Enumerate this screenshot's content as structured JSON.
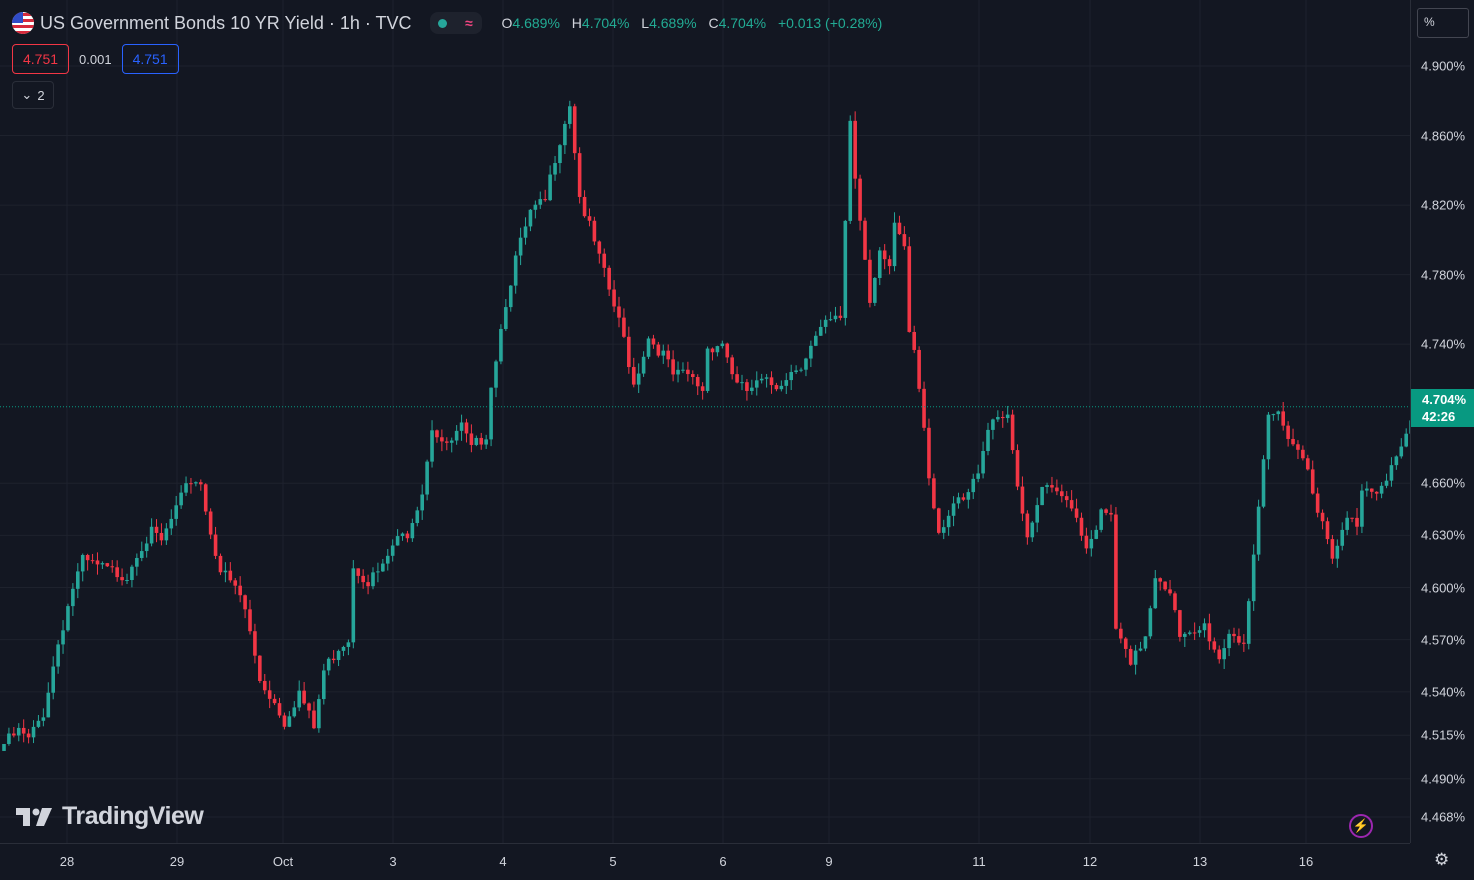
{
  "header": {
    "title": "US Government Bonds 10 YR Yield · 1h · TVC",
    "ohlc": {
      "o_label": "O",
      "o_value": "4.689%",
      "h_label": "H",
      "h_value": "4.704%",
      "l_label": "L",
      "l_value": "4.689%",
      "c_label": "C",
      "c_value": "4.704%",
      "change": "+0.013 (+0.28%)"
    },
    "sell_price": "4.751",
    "spread": "0.001",
    "buy_price": "4.751",
    "collapse_count": "2"
  },
  "price_axis": {
    "unit": "%",
    "last_price": "4.704%",
    "countdown": "42:26"
  },
  "branding": {
    "logo_text": "TradingView"
  },
  "colors": {
    "up": "#26a69a",
    "down": "#f23645",
    "background": "#131722",
    "grid": "#1e222d"
  },
  "icons": {
    "bolt": "lightning-bolt-icon",
    "settings": "gear-icon",
    "chevron": "chevron-down-icon"
  },
  "chart_data": {
    "type": "candlestick",
    "title": "US Government Bonds 10 YR Yield · 1h · TVC",
    "y_unit": "%",
    "y_ticks": [
      "4.900%",
      "4.860%",
      "4.820%",
      "4.780%",
      "4.740%",
      "4.660%",
      "4.630%",
      "4.600%",
      "4.570%",
      "4.540%",
      "4.515%",
      "4.490%",
      "4.468%"
    ],
    "x_ticks": [
      "28",
      "29",
      "Oct",
      "3",
      "4",
      "5",
      "6",
      "9",
      "11",
      "12",
      "13",
      "16"
    ],
    "grid": true,
    "last_price": 4.704,
    "series": [
      {
        "name": "",
        "path_close": [
          [
            0,
            4.51
          ],
          [
            3,
            4.517
          ],
          [
            5,
            4.512
          ],
          [
            8,
            4.528
          ],
          [
            11,
            4.568
          ],
          [
            14,
            4.6
          ],
          [
            16,
            4.615
          ],
          [
            19,
            4.612
          ],
          [
            22,
            4.609
          ],
          [
            25,
            4.607
          ],
          [
            27,
            4.621
          ],
          [
            30,
            4.631
          ],
          [
            32,
            4.626
          ],
          [
            35,
            4.645
          ],
          [
            38,
            4.662
          ],
          [
            40,
            4.661
          ],
          [
            41,
            4.644
          ],
          [
            44,
            4.61
          ],
          [
            46,
            4.603
          ],
          [
            48,
            4.595
          ],
          [
            49,
            4.587
          ],
          [
            52,
            4.547
          ],
          [
            55,
            4.534
          ],
          [
            57,
            4.523
          ],
          [
            60,
            4.54
          ],
          [
            63,
            4.519
          ],
          [
            65,
            4.552
          ],
          [
            68,
            4.566
          ],
          [
            70,
            4.571
          ],
          [
            71,
            4.613
          ],
          [
            74,
            4.604
          ],
          [
            77,
            4.611
          ],
          [
            79,
            4.624
          ],
          [
            82,
            4.632
          ],
          [
            85,
            4.656
          ],
          [
            87,
            4.693
          ],
          [
            90,
            4.68
          ],
          [
            93,
            4.692
          ],
          [
            95,
            4.679
          ],
          [
            98,
            4.689
          ],
          [
            99,
            4.717
          ],
          [
            102,
            4.765
          ],
          [
            104,
            4.789
          ],
          [
            107,
            4.815
          ],
          [
            110,
            4.822
          ],
          [
            112,
            4.848
          ],
          [
            115,
            4.879
          ],
          [
            117,
            4.825
          ],
          [
            120,
            4.798
          ],
          [
            123,
            4.771
          ],
          [
            126,
            4.743
          ],
          [
            128,
            4.717
          ],
          [
            131,
            4.744
          ],
          [
            134,
            4.734
          ],
          [
            136,
            4.722
          ],
          [
            139,
            4.722
          ],
          [
            142,
            4.714
          ],
          [
            143,
            4.738
          ],
          [
            146,
            4.741
          ],
          [
            149,
            4.716
          ],
          [
            151,
            4.713
          ],
          [
            154,
            4.718
          ],
          [
            157,
            4.716
          ],
          [
            159,
            4.722
          ],
          [
            162,
            4.729
          ],
          [
            165,
            4.743
          ],
          [
            167,
            4.751
          ],
          [
            170,
            4.755
          ],
          [
            172,
            4.869
          ],
          [
            173,
            4.836
          ],
          [
            176,
            4.767
          ],
          [
            178,
            4.794
          ],
          [
            180,
            4.781
          ],
          [
            181,
            4.808
          ],
          [
            183,
            4.793
          ],
          [
            183.4,
            4.749
          ],
          [
            184.6,
            4.745
          ],
          [
            187,
            4.693
          ],
          [
            188,
            4.665
          ],
          [
            190,
            4.633
          ],
          [
            193,
            4.648
          ],
          [
            195,
            4.648
          ],
          [
            198,
            4.665
          ],
          [
            201,
            4.7
          ],
          [
            204,
            4.7
          ],
          [
            206,
            4.661
          ],
          [
            208,
            4.625
          ],
          [
            211,
            4.657
          ],
          [
            214,
            4.653
          ],
          [
            217,
            4.649
          ],
          [
            220,
            4.624
          ],
          [
            223,
            4.642
          ],
          [
            225,
            4.64
          ],
          [
            226,
            4.576
          ],
          [
            229,
            4.554
          ],
          [
            232,
            4.573
          ],
          [
            234,
            4.608
          ],
          [
            237,
            4.599
          ],
          [
            239,
            4.57
          ],
          [
            242,
            4.572
          ],
          [
            244,
            4.578
          ],
          [
            247,
            4.559
          ],
          [
            249,
            4.575
          ],
          [
            252,
            4.569
          ],
          [
            254,
            4.615
          ],
          [
            257,
            4.698
          ],
          [
            259,
            4.7
          ],
          [
            262,
            4.684
          ],
          [
            265,
            4.67
          ],
          [
            267,
            4.646
          ],
          [
            270,
            4.615
          ],
          [
            273,
            4.639
          ],
          [
            275,
            4.637
          ],
          [
            276,
            4.658
          ],
          [
            279,
            4.657
          ],
          [
            282,
            4.669
          ],
          [
            285,
            4.685
          ],
          [
            287,
            4.703
          ]
        ]
      }
    ]
  }
}
